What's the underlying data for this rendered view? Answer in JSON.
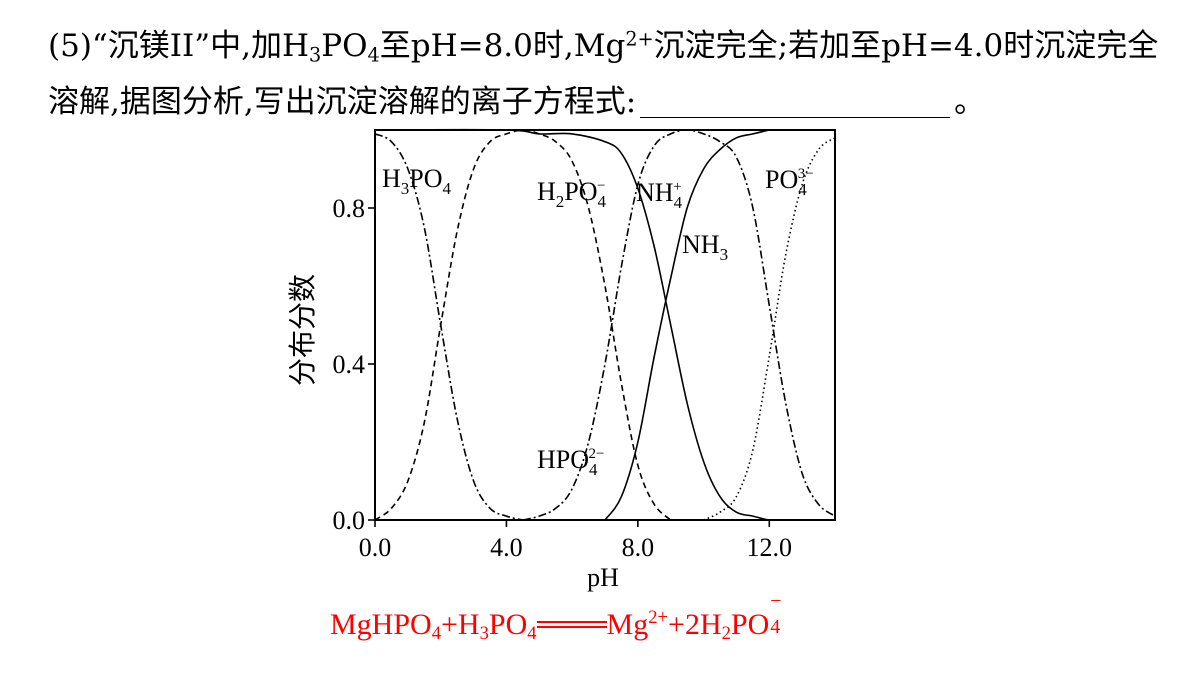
{
  "question": {
    "p1": "(5)“沉镁II”中,加H",
    "s1": "3",
    "p2": "PO",
    "s2": "4",
    "p3": "至pH=8.0时,Mg",
    "s3": "2+",
    "p4": "沉淀完全;若加至pH=4.0时沉淀完全溶解,据图分析,写出沉淀溶解的离子方程式:",
    "p5": "。"
  },
  "answer": {
    "a1": "MgHPO",
    "a2": "4",
    "a3": "+H",
    "a4": "3",
    "a5": "PO",
    "a6": "4",
    "a7": "Mg",
    "a8": "2+",
    "a9": "+2H",
    "a10": "2",
    "a11": "PO",
    "a12_sup": "−",
    "a12_sub": "4"
  },
  "chart_data": {
    "type": "line",
    "xlabel": "pH",
    "ylabel": "分布分数",
    "xlim": [
      0,
      14
    ],
    "ylim": [
      0,
      1
    ],
    "xticks": [
      "0.0",
      "4.0",
      "8.0",
      "12.0"
    ],
    "yticks": [
      "0.0",
      "0.4",
      "0.8"
    ],
    "grid": false,
    "series": [
      {
        "name": "H3PO4",
        "label": [
          "H",
          "3",
          "PO",
          "4"
        ],
        "style": "dashdot",
        "x": [
          0,
          0.5,
          1.0,
          1.5,
          2.0,
          2.5,
          3.0,
          3.5,
          4.0,
          4.5
        ],
        "y": [
          0.99,
          0.97,
          0.9,
          0.75,
          0.5,
          0.26,
          0.1,
          0.03,
          0.01,
          0.0
        ]
      },
      {
        "name": "H2PO4-",
        "label": [
          "H",
          "2",
          "PO",
          "4",
          "−"
        ],
        "style": "dashed",
        "x": [
          0,
          0.5,
          1.0,
          1.5,
          2.0,
          2.5,
          3.0,
          3.5,
          4.0,
          4.5,
          5.0,
          5.5,
          6.0,
          6.5,
          7.0,
          7.5,
          8.0,
          8.5,
          9.0
        ],
        "y": [
          0.0,
          0.03,
          0.1,
          0.25,
          0.5,
          0.74,
          0.9,
          0.97,
          0.99,
          1.0,
          0.99,
          0.97,
          0.92,
          0.8,
          0.6,
          0.35,
          0.14,
          0.04,
          0.0
        ]
      },
      {
        "name": "HPO42-",
        "label": [
          "HPO",
          "4",
          "2−"
        ],
        "style": "dashdot",
        "x": [
          4.5,
          5.0,
          5.5,
          6.0,
          6.5,
          7.0,
          7.5,
          8.0,
          8.5,
          9.0,
          9.5,
          10.0,
          10.5,
          11.0,
          11.5,
          12.0,
          12.5,
          13.0,
          13.5,
          14.0
        ],
        "y": [
          0.0,
          0.01,
          0.03,
          0.08,
          0.2,
          0.4,
          0.65,
          0.86,
          0.96,
          0.99,
          1.0,
          0.99,
          0.97,
          0.93,
          0.8,
          0.55,
          0.3,
          0.12,
          0.04,
          0.01
        ]
      },
      {
        "name": "NH4+",
        "label": [
          "NH",
          "4",
          "+"
        ],
        "style": "solid",
        "x": [
          0,
          4.0,
          5.0,
          6.0,
          7.0,
          7.5,
          8.0,
          8.5,
          9.0,
          9.5,
          10.0,
          10.5,
          11.0,
          11.5,
          12.0,
          12.5
        ],
        "y": [
          1.0,
          1.0,
          0.99,
          0.99,
          0.97,
          0.94,
          0.85,
          0.7,
          0.5,
          0.3,
          0.15,
          0.06,
          0.02,
          0.01,
          0.0,
          0.0
        ]
      },
      {
        "name": "NH3",
        "label": [
          "NH",
          "3"
        ],
        "style": "solid",
        "x": [
          7.0,
          7.5,
          8.0,
          8.5,
          9.0,
          9.5,
          10.0,
          10.5,
          11.0,
          11.5,
          12.0
        ],
        "y": [
          0.0,
          0.06,
          0.2,
          0.42,
          0.62,
          0.8,
          0.9,
          0.95,
          0.98,
          0.99,
          1.0
        ]
      },
      {
        "name": "PO43-",
        "label": [
          "PO",
          "4",
          "3−"
        ],
        "style": "dotted",
        "x": [
          10.0,
          10.5,
          11.0,
          11.5,
          12.0,
          12.5,
          13.0,
          13.5,
          14.0
        ],
        "y": [
          0.0,
          0.02,
          0.06,
          0.18,
          0.42,
          0.68,
          0.86,
          0.95,
          0.98
        ]
      }
    ]
  }
}
